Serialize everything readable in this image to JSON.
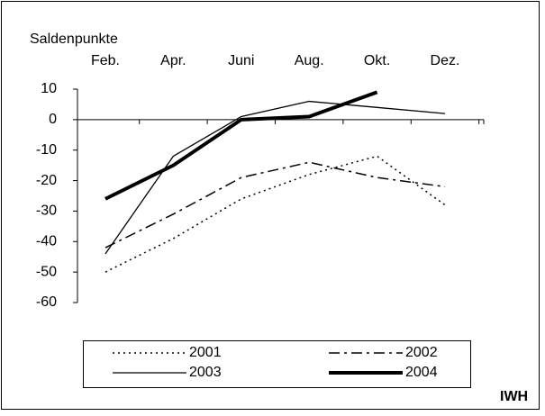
{
  "chart_data": {
    "type": "line",
    "ylabel": "Saldenpunkte",
    "categories": [
      "Feb.",
      "Apr.",
      "Juni",
      "Aug.",
      "Okt.",
      "Dez."
    ],
    "series": [
      {
        "name": "2001",
        "color": "#000000",
        "dash": "2,4",
        "width": 1.5,
        "values": [
          -50,
          -39,
          -26,
          -18,
          -12,
          -28
        ]
      },
      {
        "name": "2002",
        "color": "#000000",
        "dash": "12,5,3,5",
        "width": 1.5,
        "values": [
          -42,
          -31,
          -19,
          -14,
          -19,
          -22
        ]
      },
      {
        "name": "2003",
        "color": "#000000",
        "dash": "none",
        "width": 1.3,
        "values": [
          -44,
          -12,
          1,
          6,
          4,
          2
        ]
      },
      {
        "name": "2004",
        "color": "#000000",
        "dash": "none",
        "width": 4,
        "values": [
          -26,
          -15,
          0,
          1,
          9,
          null
        ]
      }
    ],
    "ylim": [
      -60,
      10
    ],
    "yticks": [
      -60,
      -50,
      -40,
      -30,
      -20,
      -10,
      0,
      10
    ],
    "source": "IWH"
  }
}
